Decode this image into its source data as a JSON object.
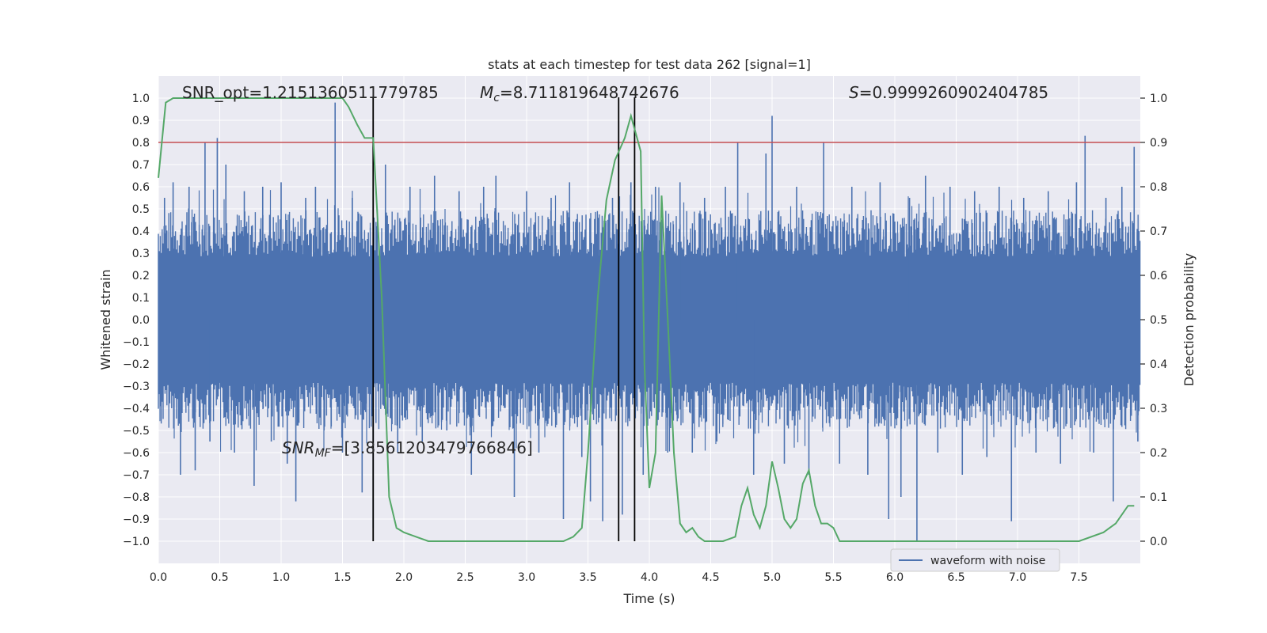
{
  "chart_data": {
    "type": "line",
    "title": "stats at each timestep for test data 262 [signal=1]",
    "xlabel": "Time (s)",
    "ylabel": "Whitened strain",
    "ylabel_right": "Detection probability",
    "xlim": [
      0.0,
      8.0
    ],
    "ylim": [
      -1.1,
      1.1
    ],
    "ylim_right": [
      -0.05,
      1.05
    ],
    "x_ticks": [
      0.0,
      0.5,
      1.0,
      1.5,
      2.0,
      2.5,
      3.0,
      3.5,
      4.0,
      4.5,
      5.0,
      5.5,
      6.0,
      6.5,
      7.0,
      7.5
    ],
    "x_tick_labels": [
      "0.0",
      "0.5",
      "1.0",
      "1.5",
      "2.0",
      "2.5",
      "3.0",
      "3.5",
      "4.0",
      "4.5",
      "5.0",
      "5.5",
      "6.0",
      "6.5",
      "7.0",
      "7.5"
    ],
    "y_ticks": [
      -1.0,
      -0.9,
      -0.8,
      -0.7,
      -0.6,
      -0.5,
      -0.4,
      -0.3,
      -0.2,
      -0.1,
      0.0,
      0.1,
      0.2,
      0.3,
      0.4,
      0.5,
      0.6,
      0.7,
      0.8,
      0.9,
      1.0
    ],
    "y_tick_labels": [
      "−1.0",
      "−0.9",
      "−0.8",
      "−0.7",
      "−0.6",
      "−0.5",
      "−0.4",
      "−0.3",
      "−0.2",
      "−0.1",
      "0.0",
      "0.1",
      "0.2",
      "0.3",
      "0.4",
      "0.5",
      "0.6",
      "0.7",
      "0.8",
      "0.9",
      "1.0"
    ],
    "y_right_ticks": [
      0.0,
      0.1,
      0.2,
      0.3,
      0.4,
      0.5,
      0.6,
      0.7,
      0.8,
      0.9,
      1.0
    ],
    "y_right_tick_labels": [
      "0.0",
      "0.1",
      "0.2",
      "0.3",
      "0.4",
      "0.5",
      "0.6",
      "0.7",
      "0.8",
      "0.9",
      "1.0"
    ],
    "grid": true,
    "legend": {
      "entries": [
        "waveform with noise"
      ],
      "location": "lower-right"
    },
    "noise_series": {
      "name": "waveform with noise",
      "color": "#4c72b0",
      "core_amplitude": 0.38,
      "spikes": [
        [
          0.05,
          0.55
        ],
        [
          0.12,
          0.62
        ],
        [
          0.18,
          -0.7
        ],
        [
          0.25,
          0.6
        ],
        [
          0.3,
          -0.68
        ],
        [
          0.38,
          0.8
        ],
        [
          0.42,
          -0.55
        ],
        [
          0.48,
          0.82
        ],
        [
          0.55,
          0.7
        ],
        [
          0.62,
          -0.6
        ],
        [
          0.7,
          0.58
        ],
        [
          0.78,
          -0.75
        ],
        [
          0.85,
          0.6
        ],
        [
          0.92,
          -0.55
        ],
        [
          1.0,
          0.62
        ],
        [
          1.05,
          -0.65
        ],
        [
          1.12,
          -0.82
        ],
        [
          1.2,
          0.55
        ],
        [
          1.28,
          0.6
        ],
        [
          1.35,
          -0.5
        ],
        [
          1.44,
          0.98
        ],
        [
          1.5,
          -0.6
        ],
        [
          1.58,
          0.55
        ],
        [
          1.66,
          -0.78
        ],
        [
          1.75,
          -0.94
        ],
        [
          1.85,
          0.7
        ],
        [
          1.95,
          -0.6
        ],
        [
          2.05,
          0.6
        ],
        [
          2.15,
          -0.55
        ],
        [
          2.25,
          0.65
        ],
        [
          2.35,
          -0.5
        ],
        [
          2.45,
          0.58
        ],
        [
          2.55,
          -0.7
        ],
        [
          2.65,
          0.6
        ],
        [
          2.75,
          0.65
        ],
        [
          2.9,
          -0.8
        ],
        [
          3.0,
          0.58
        ],
        [
          3.1,
          -0.6
        ],
        [
          3.2,
          0.55
        ],
        [
          3.3,
          -0.9
        ],
        [
          3.35,
          0.62
        ],
        [
          3.45,
          -0.62
        ],
        [
          3.52,
          -0.82
        ],
        [
          3.62,
          -0.91
        ],
        [
          3.7,
          0.55
        ],
        [
          3.78,
          -0.88
        ],
        [
          3.85,
          0.62
        ],
        [
          3.95,
          -0.7
        ],
        [
          4.05,
          0.6
        ],
        [
          4.15,
          -0.6
        ],
        [
          4.25,
          0.62
        ],
        [
          4.35,
          -0.6
        ],
        [
          4.45,
          0.55
        ],
        [
          4.55,
          -0.55
        ],
        [
          4.62,
          0.6
        ],
        [
          4.72,
          0.8
        ],
        [
          4.85,
          -0.7
        ],
        [
          4.95,
          0.75
        ],
        [
          5.0,
          0.92
        ],
        [
          5.1,
          -0.65
        ],
        [
          5.2,
          0.6
        ],
        [
          5.3,
          -0.7
        ],
        [
          5.42,
          0.8
        ],
        [
          5.55,
          -0.65
        ],
        [
          5.65,
          0.6
        ],
        [
          5.78,
          -0.7
        ],
        [
          5.88,
          0.62
        ],
        [
          5.95,
          -0.9
        ],
        [
          6.05,
          -0.8
        ],
        [
          6.12,
          0.55
        ],
        [
          6.18,
          -1.0
        ],
        [
          6.25,
          0.65
        ],
        [
          6.35,
          -0.6
        ],
        [
          6.45,
          0.6
        ],
        [
          6.55,
          -0.7
        ],
        [
          6.65,
          0.58
        ],
        [
          6.75,
          -0.62
        ],
        [
          6.85,
          0.6
        ],
        [
          6.95,
          -0.91
        ],
        [
          7.05,
          0.55
        ],
        [
          7.15,
          -0.6
        ],
        [
          7.25,
          0.58
        ],
        [
          7.35,
          -0.65
        ],
        [
          7.48,
          0.62
        ],
        [
          7.55,
          0.83
        ],
        [
          7.62,
          -0.6
        ],
        [
          7.72,
          0.55
        ],
        [
          7.78,
          -0.82
        ],
        [
          7.85,
          0.6
        ],
        [
          7.95,
          0.78
        ],
        [
          7.98,
          -0.55
        ]
      ]
    },
    "probability_series": {
      "name": "detection probability",
      "color": "#55a868",
      "axis": "right",
      "x": [
        0.0,
        0.06,
        0.12,
        0.5,
        1.0,
        1.5,
        1.55,
        1.62,
        1.68,
        1.75,
        1.82,
        1.88,
        1.94,
        2.0,
        2.1,
        2.2,
        2.4,
        2.7,
        3.0,
        3.3,
        3.38,
        3.45,
        3.5,
        3.58,
        3.65,
        3.72,
        3.8,
        3.85,
        3.88,
        3.93,
        3.96,
        4.0,
        4.05,
        4.1,
        4.15,
        4.2,
        4.25,
        4.3,
        4.35,
        4.4,
        4.45,
        4.5,
        4.6,
        4.7,
        4.75,
        4.8,
        4.85,
        4.9,
        4.95,
        5.0,
        5.05,
        5.1,
        5.15,
        5.2,
        5.25,
        5.3,
        5.35,
        5.4,
        5.45,
        5.5,
        5.55,
        5.6,
        5.7,
        5.8,
        5.9,
        6.0,
        6.1,
        6.2,
        6.3,
        6.5,
        6.7,
        6.9,
        7.1,
        7.3,
        7.5,
        7.7,
        7.8,
        7.9,
        7.95
      ],
      "y": [
        0.82,
        0.99,
        1.0,
        1.0,
        1.0,
        1.0,
        0.98,
        0.94,
        0.91,
        0.91,
        0.55,
        0.1,
        0.03,
        0.02,
        0.01,
        0.0,
        0.0,
        0.0,
        0.0,
        0.0,
        0.01,
        0.03,
        0.2,
        0.55,
        0.77,
        0.86,
        0.91,
        0.96,
        0.93,
        0.88,
        0.4,
        0.12,
        0.2,
        0.78,
        0.5,
        0.2,
        0.04,
        0.02,
        0.03,
        0.01,
        0.0,
        0.0,
        0.0,
        0.01,
        0.08,
        0.12,
        0.06,
        0.03,
        0.08,
        0.18,
        0.12,
        0.05,
        0.03,
        0.05,
        0.13,
        0.16,
        0.08,
        0.04,
        0.04,
        0.03,
        0.0,
        0.0,
        0.0,
        0.0,
        0.0,
        0.0,
        0.0,
        0.0,
        0.0,
        0.0,
        0.0,
        0.0,
        0.0,
        0.0,
        0.0,
        0.02,
        0.04,
        0.08,
        0.08
      ],
      "y_extra_note": "values on right axis"
    },
    "hlines": [
      {
        "y": 0.9,
        "axis": "right",
        "color": "#c44e52"
      }
    ],
    "vlines": [
      {
        "x": 1.75,
        "color": "#000000"
      },
      {
        "x": 3.75,
        "color": "#000000"
      },
      {
        "x": 3.88,
        "color": "#000000"
      }
    ],
    "annotations": {
      "snr_opt": "SNR_opt=1.2151360511779785",
      "mc_symbol": "M",
      "mc_sub": "c",
      "mc_value": "=8.711819648742676",
      "s_symbol": "S",
      "s_value": "=0.9999260902404785",
      "snr_mf_symbol": "SNR",
      "snr_mf_sub": "MF",
      "snr_mf_value": "=[3.8561203479766846]"
    }
  }
}
